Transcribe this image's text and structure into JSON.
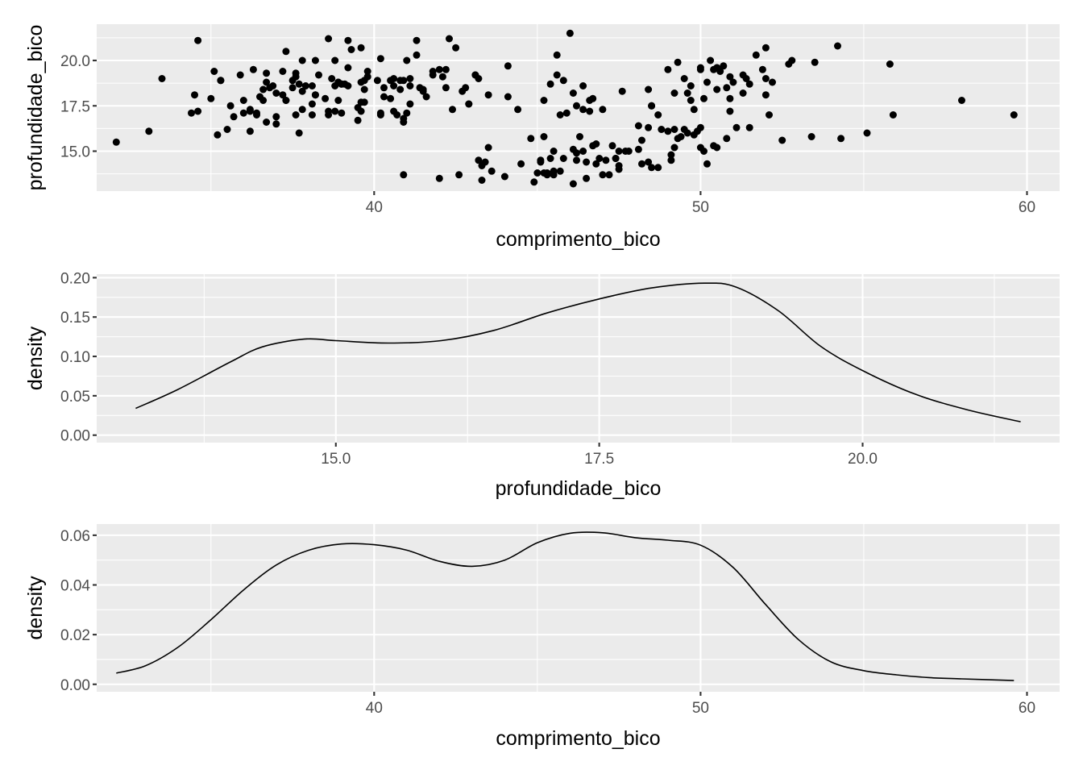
{
  "chart_data": [
    {
      "type": "scatter",
      "xlabel": "comprimento_bico",
      "ylabel": "profundidade_bico",
      "xlim": [
        31.5,
        61.0
      ],
      "ylim": [
        12.8,
        22.0
      ],
      "x_ticks": [
        40,
        50,
        60
      ],
      "x_tick_labels": [
        "40",
        "50",
        "60"
      ],
      "y_ticks": [
        15,
        17.5,
        20
      ],
      "y_tick_labels": [
        "15.0",
        "17.5",
        "20.0"
      ],
      "grid": true,
      "legend": "none",
      "points": [
        [
          32.1,
          15.5
        ],
        [
          33.1,
          16.1
        ],
        [
          33.5,
          19.0
        ],
        [
          34.4,
          17.1
        ],
        [
          34.5,
          18.1
        ],
        [
          34.6,
          21.1
        ],
        [
          34.6,
          17.2
        ],
        [
          35.0,
          17.9
        ],
        [
          35.1,
          19.4
        ],
        [
          35.2,
          15.9
        ],
        [
          35.3,
          18.9
        ],
        [
          35.5,
          16.2
        ],
        [
          35.6,
          17.5
        ],
        [
          35.7,
          16.9
        ],
        [
          35.9,
          19.2
        ],
        [
          36.0,
          17.8
        ],
        [
          36.0,
          17.1
        ],
        [
          36.2,
          17.2
        ],
        [
          36.2,
          16.1
        ],
        [
          36.3,
          19.5
        ],
        [
          36.4,
          17.0
        ],
        [
          36.5,
          18.0
        ],
        [
          36.6,
          17.8
        ],
        [
          36.7,
          19.3
        ],
        [
          36.7,
          18.8
        ],
        [
          36.8,
          18.5
        ],
        [
          36.9,
          18.6
        ],
        [
          37.0,
          16.5
        ],
        [
          37.0,
          16.9
        ],
        [
          37.2,
          18.1
        ],
        [
          37.3,
          17.8
        ],
        [
          37.3,
          20.5
        ],
        [
          37.5,
          18.9
        ],
        [
          37.5,
          18.5
        ],
        [
          37.6,
          19.3
        ],
        [
          37.6,
          17.0
        ],
        [
          37.7,
          18.7
        ],
        [
          37.7,
          16.0
        ],
        [
          37.8,
          18.3
        ],
        [
          37.8,
          20.0
        ],
        [
          37.9,
          18.6
        ],
        [
          38.1,
          18.6
        ],
        [
          38.1,
          17.0
        ],
        [
          38.2,
          18.1
        ],
        [
          38.2,
          20.0
        ],
        [
          38.3,
          19.2
        ],
        [
          38.5,
          17.9
        ],
        [
          38.6,
          21.2
        ],
        [
          38.6,
          17.2
        ],
        [
          38.7,
          19.0
        ],
        [
          38.8,
          17.2
        ],
        [
          38.8,
          20.0
        ],
        [
          38.9,
          17.8
        ],
        [
          38.9,
          18.8
        ],
        [
          39.0,
          17.1
        ],
        [
          39.0,
          18.7
        ],
        [
          39.1,
          18.7
        ],
        [
          39.2,
          19.6
        ],
        [
          39.2,
          21.1
        ],
        [
          39.3,
          20.6
        ],
        [
          39.5,
          17.4
        ],
        [
          39.5,
          16.7
        ],
        [
          39.6,
          17.7
        ],
        [
          39.6,
          18.8
        ],
        [
          39.6,
          20.7
        ],
        [
          39.7,
          17.7
        ],
        [
          39.7,
          18.9
        ],
        [
          39.8,
          19.1
        ],
        [
          40.1,
          18.9
        ],
        [
          40.2,
          17.1
        ],
        [
          40.2,
          17.0
        ],
        [
          40.3,
          18.0
        ],
        [
          40.3,
          18.5
        ],
        [
          40.5,
          17.9
        ],
        [
          40.5,
          18.9
        ],
        [
          40.6,
          18.6
        ],
        [
          40.6,
          17.2
        ],
        [
          40.7,
          17.0
        ],
        [
          40.8,
          18.4
        ],
        [
          40.9,
          16.8
        ],
        [
          40.9,
          18.9
        ],
        [
          41.0,
          17.1
        ],
        [
          41.1,
          17.6
        ],
        [
          41.1,
          18.6
        ],
        [
          41.1,
          19.0
        ],
        [
          41.3,
          20.3
        ],
        [
          41.3,
          21.1
        ],
        [
          41.4,
          18.5
        ],
        [
          41.5,
          18.3
        ],
        [
          41.6,
          18.0
        ],
        [
          41.8,
          19.4
        ],
        [
          42.0,
          19.5
        ],
        [
          42.1,
          19.1
        ],
        [
          42.2,
          18.5
        ],
        [
          42.2,
          19.5
        ],
        [
          42.3,
          21.2
        ],
        [
          42.5,
          20.7
        ],
        [
          42.7,
          18.3
        ],
        [
          42.8,
          18.5
        ],
        [
          42.9,
          17.6
        ],
        [
          43.1,
          19.2
        ],
        [
          43.2,
          19.0
        ],
        [
          44.1,
          18.0
        ],
        [
          44.1,
          19.7
        ],
        [
          45.6,
          20.3
        ],
        [
          45.8,
          18.9
        ],
        [
          46.0,
          21.5
        ],
        [
          46.4,
          18.6
        ],
        [
          46.6,
          17.8
        ],
        [
          46.7,
          17.9
        ],
        [
          47.5,
          15.0
        ],
        [
          47.6,
          18.3
        ],
        [
          48.1,
          16.4
        ],
        [
          48.4,
          18.4
        ],
        [
          48.5,
          17.5
        ],
        [
          48.7,
          17.0
        ],
        [
          49.0,
          19.5
        ],
        [
          49.2,
          18.2
        ],
        [
          49.5,
          19.0
        ],
        [
          49.6,
          18.2
        ],
        [
          49.7,
          18.6
        ],
        [
          49.8,
          17.3
        ],
        [
          50.0,
          19.5
        ],
        [
          50.2,
          18.8
        ],
        [
          50.3,
          20.0
        ],
        [
          50.4,
          19.5
        ],
        [
          50.5,
          19.6
        ],
        [
          50.6,
          19.4
        ],
        [
          50.7,
          19.7
        ],
        [
          50.8,
          18.5
        ],
        [
          50.9,
          19.1
        ],
        [
          51.0,
          18.8
        ],
        [
          51.3,
          19.2
        ],
        [
          51.3,
          18.2
        ],
        [
          51.4,
          19.0
        ],
        [
          51.5,
          18.7
        ],
        [
          51.7,
          20.3
        ],
        [
          51.9,
          19.5
        ],
        [
          52.0,
          18.1
        ],
        [
          52.0,
          19.0
        ],
        [
          52.2,
          18.8
        ],
        [
          52.7,
          19.8
        ],
        [
          52.8,
          20.0
        ],
        [
          53.5,
          19.9
        ],
        [
          54.2,
          20.8
        ],
        [
          55.8,
          19.8
        ],
        [
          42.4,
          17.3
        ],
        [
          42.6,
          13.7
        ],
        [
          42.0,
          13.5
        ],
        [
          43.2,
          14.5
        ],
        [
          43.3,
          13.4
        ],
        [
          43.6,
          13.9
        ],
        [
          44.0,
          13.6
        ],
        [
          44.5,
          14.3
        ],
        [
          45.1,
          14.5
        ],
        [
          45.1,
          14.4
        ],
        [
          45.2,
          13.8
        ],
        [
          45.3,
          13.7
        ],
        [
          45.4,
          14.6
        ],
        [
          45.5,
          13.7
        ],
        [
          45.5,
          13.9
        ],
        [
          45.7,
          13.9
        ],
        [
          45.8,
          14.6
        ],
        [
          46.1,
          13.2
        ],
        [
          46.2,
          14.5
        ],
        [
          46.3,
          15.8
        ],
        [
          46.4,
          15.0
        ],
        [
          46.5,
          13.5
        ],
        [
          46.8,
          14.3
        ],
        [
          46.9,
          14.6
        ],
        [
          47.0,
          17.3
        ],
        [
          47.2,
          13.7
        ],
        [
          47.3,
          15.3
        ],
        [
          47.4,
          14.6
        ],
        [
          47.5,
          14.2
        ],
        [
          47.7,
          15.0
        ],
        [
          48.1,
          15.1
        ],
        [
          48.2,
          14.3
        ],
        [
          48.4,
          14.4
        ],
        [
          48.5,
          14.1
        ],
        [
          48.7,
          14.1
        ],
        [
          48.8,
          16.2
        ],
        [
          49.0,
          16.1
        ],
        [
          49.1,
          14.8
        ],
        [
          49.2,
          15.2
        ],
        [
          49.3,
          15.7
        ],
        [
          49.4,
          15.8
        ],
        [
          49.5,
          16.2
        ],
        [
          49.6,
          16.0
        ],
        [
          49.8,
          15.9
        ],
        [
          50.0,
          15.2
        ],
        [
          50.1,
          15.0
        ],
        [
          50.2,
          14.3
        ],
        [
          50.4,
          15.3
        ],
        [
          50.5,
          15.2
        ],
        [
          50.8,
          15.7
        ],
        [
          50.9,
          17.2
        ],
        [
          51.1,
          16.3
        ],
        [
          51.5,
          16.3
        ],
        [
          52.1,
          17.0
        ],
        [
          52.5,
          15.6
        ],
        [
          53.4,
          15.8
        ],
        [
          54.3,
          15.7
        ],
        [
          55.1,
          16.0
        ],
        [
          55.9,
          17.0
        ],
        [
          58.0,
          17.8
        ],
        [
          59.6,
          17.0
        ],
        [
          45.2,
          15.8
        ],
        [
          44.9,
          13.3
        ],
        [
          43.5,
          15.2
        ],
        [
          46.8,
          15.4
        ],
        [
          47.4,
          14.6
        ],
        [
          48.4,
          16.3
        ],
        [
          46.1,
          15.1
        ],
        [
          47.8,
          15.0
        ],
        [
          49.1,
          14.5
        ],
        [
          45.3,
          13.8
        ],
        [
          44.8,
          15.7
        ],
        [
          46.5,
          14.4
        ],
        [
          46.2,
          14.9
        ],
        [
          47.1,
          14.5
        ],
        [
          48.2,
          15.6
        ],
        [
          49.9,
          16.1
        ],
        [
          50.0,
          16.3
        ],
        [
          43.4,
          14.4
        ],
        [
          45.5,
          15.0
        ],
        [
          46.7,
          15.3
        ],
        [
          47.5,
          14.0
        ],
        [
          45.9,
          17.1
        ],
        [
          46.4,
          17.3
        ],
        [
          45.6,
          19.2
        ],
        [
          46.2,
          17.5
        ],
        [
          45.4,
          18.7
        ],
        [
          45.2,
          17.8
        ],
        [
          46.1,
          18.2
        ],
        [
          46.6,
          17.2
        ],
        [
          50.5,
          18.4
        ],
        [
          49.7,
          17.8
        ],
        [
          52.0,
          20.7
        ],
        [
          50.5,
          19.6
        ],
        [
          45.7,
          17.0
        ],
        [
          43.5,
          18.1
        ],
        [
          48.5,
          17.5
        ],
        [
          49.3,
          19.9
        ],
        [
          50.9,
          17.9
        ],
        [
          40.9,
          13.7
        ],
        [
          39.7,
          18.4
        ],
        [
          38.1,
          17.6
        ],
        [
          37.2,
          19.4
        ],
        [
          36.6,
          18.4
        ],
        [
          41.0,
          20.0
        ],
        [
          40.8,
          18.9
        ],
        [
          39.0,
          18.7
        ],
        [
          36.7,
          16.6
        ],
        [
          38.8,
          18.6
        ],
        [
          40.2,
          20.1
        ],
        [
          37.0,
          18.2
        ],
        [
          35.3,
          18.9
        ],
        [
          41.5,
          18.4
        ],
        [
          39.6,
          17.2
        ],
        [
          38.9,
          18.8
        ],
        [
          43.1,
          19.2
        ],
        [
          37.6,
          19.1
        ],
        [
          38.6,
          17.0
        ],
        [
          41.8,
          19.2
        ],
        [
          40.9,
          16.6
        ],
        [
          36.4,
          17.1
        ],
        [
          39.2,
          18.6
        ],
        [
          38.2,
          18.1
        ],
        [
          37.8,
          17.3
        ],
        [
          42.9,
          17.6
        ],
        [
          37.3,
          17.8
        ],
        [
          36.2,
          17.3
        ],
        [
          40.6,
          19.0
        ],
        [
          39.8,
          19.4
        ],
        [
          43.3,
          14.2
        ],
        [
          45.0,
          13.8
        ],
        [
          44.4,
          17.3
        ],
        [
          47.0,
          13.7
        ],
        [
          49.2,
          16.2
        ],
        [
          50.1,
          17.9
        ],
        [
          50.0,
          19.6
        ]
      ]
    },
    {
      "type": "line",
      "xlabel": "profundidade_bico",
      "ylabel": "density",
      "xlim": [
        12.73,
        21.87
      ],
      "ylim": [
        -0.0095,
        0.2045
      ],
      "x_ticks": [
        15,
        17.5,
        20
      ],
      "x_tick_labels": [
        "15.0",
        "17.5",
        "20.0"
      ],
      "y_ticks": [
        0,
        0.05,
        0.1,
        0.15,
        0.2
      ],
      "y_tick_labels": [
        "0.00",
        "0.05",
        "0.10",
        "0.15",
        "0.20"
      ],
      "grid": true,
      "legend": "none",
      "x": [
        13.1,
        13.5,
        14.0,
        14.3,
        14.7,
        15.0,
        15.5,
        16.0,
        16.5,
        17.0,
        17.5,
        18.0,
        18.5,
        18.8,
        19.2,
        19.6,
        20.0,
        20.5,
        21.0,
        21.5
      ],
      "y": [
        0.034,
        0.058,
        0.093,
        0.112,
        0.122,
        0.12,
        0.117,
        0.12,
        0.133,
        0.155,
        0.173,
        0.187,
        0.193,
        0.188,
        0.158,
        0.113,
        0.082,
        0.052,
        0.032,
        0.017
      ]
    },
    {
      "type": "line",
      "xlabel": "comprimento_bico",
      "ylabel": "density",
      "xlim": [
        31.5,
        61.0
      ],
      "ylim": [
        -0.003,
        0.0645
      ],
      "x_ticks": [
        40,
        50,
        60
      ],
      "x_tick_labels": [
        "40",
        "50",
        "60"
      ],
      "y_ticks": [
        0,
        0.02,
        0.04,
        0.06
      ],
      "y_tick_labels": [
        "0.00",
        "0.02",
        "0.04",
        "0.06"
      ],
      "grid": true,
      "legend": "none",
      "x": [
        32.1,
        33.0,
        34.0,
        35.0,
        36.0,
        37.0,
        38.0,
        39.0,
        40.0,
        41.0,
        42.0,
        43.0,
        44.0,
        45.0,
        46.0,
        47.0,
        48.0,
        49.0,
        50.0,
        51.0,
        52.0,
        53.0,
        54.0,
        55.0,
        56.0,
        57.0,
        58.0,
        59.6
      ],
      "y": [
        0.0045,
        0.0075,
        0.015,
        0.026,
        0.038,
        0.048,
        0.054,
        0.0565,
        0.0562,
        0.054,
        0.0495,
        0.0475,
        0.05,
        0.057,
        0.0608,
        0.061,
        0.059,
        0.058,
        0.056,
        0.047,
        0.032,
        0.018,
        0.009,
        0.0055,
        0.0038,
        0.0027,
        0.0022,
        0.0015
      ]
    }
  ]
}
